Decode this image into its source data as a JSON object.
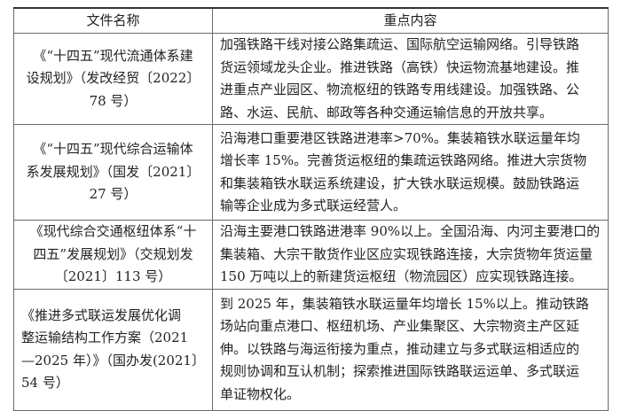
{
  "table": {
    "headers": [
      "文件名称",
      "重点内容"
    ],
    "rows": [
      {
        "name": [
          "《“十四五”现代流通体系建",
          "设规划》（发改经贸〔2022〕",
          "78 号）"
        ],
        "content": [
          "加强铁路干线对接公路集疏运、国际航空运输网络。引导铁路",
          "货运领域龙头企业。推进铁路（高铁）快运物流基地建设。推",
          "进重点产业园区、物流枢纽的铁路专用线建设。加强铁路、公",
          "路、水运、民航、邮政等各种交通运输信息的开放共享。"
        ]
      },
      {
        "name": [
          "《“十四五”现代综合运输体",
          "系发展规划》（国发〔2021〕",
          "27 号）"
        ],
        "content": [
          "沿海港口重要港区铁路进港率>70%。集装箱铁水联运量年均",
          "增长率 15%。完善货运枢纽的集疏运铁路网络。推进大宗货物",
          "和集装箱铁水联运系统建设，扩大铁水联运规模。鼓励铁路运",
          "输等企业成为多式联运经营人。"
        ]
      },
      {
        "name": [
          "《现代综合交通枢纽体系“十",
          "四五”发展规划》（交规划发",
          "〔2021〕113 号）"
        ],
        "content": [
          "沿海主要港口铁路进港率 90%以上。全国沿海、内河主要港口的",
          "集装箱、大宗干散货作业区应实现铁路连接，大宗货物年货运量",
          "150 万吨以上的新建货运枢纽（物流园区）应实现铁路连接。"
        ]
      },
      {
        "name": [
          "《推进多式联运发展优化调",
          "整运输结构工作方案（2021",
          "—2025 年）》（国办发(2021〕",
          "54 号）"
        ],
        "content": [
          "到 2025 年，集装箱铁水联运量年均增长 15%以上。推动铁路",
          "场站向重点港口、枢纽机场、产业集聚区、大宗物资主产区延",
          "伸。以铁路与海运衔接为重点，推动建立与多式联运相适应的",
          "规则协调和互认机制；探索推进国际铁路联运运单、多式联运",
          "单证物权化。"
        ]
      }
    ]
  }
}
